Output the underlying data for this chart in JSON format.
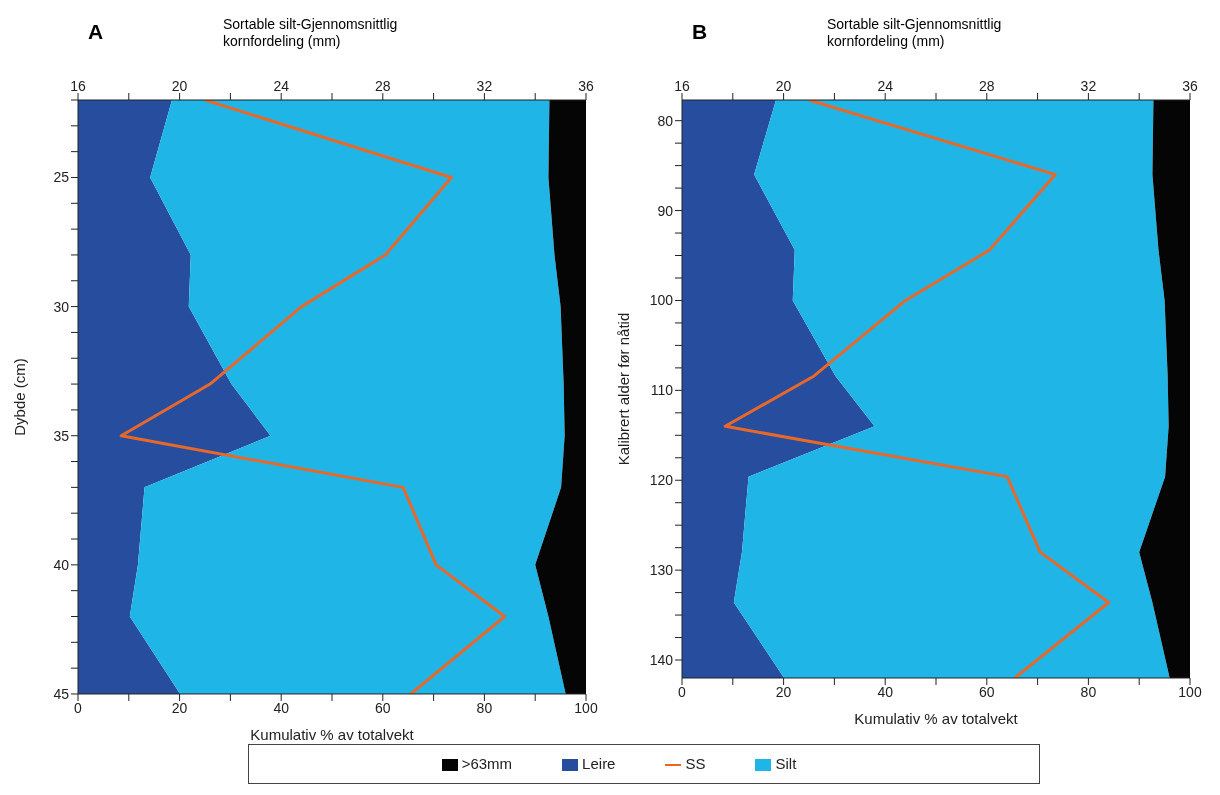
{
  "chart_data": [
    {
      "type": "area",
      "title": "A",
      "stacked": true,
      "orientation": "horizontal",
      "xlabel": "Kumulativ % av totalvekt",
      "x2label": "Sortable silt-Gjennomsnittlig kornfordeling (mm)",
      "ylabel": "Dybde (cm)",
      "legend": "bottom",
      "x": [
        22,
        25,
        28,
        30,
        33,
        35,
        37,
        40,
        42,
        45
      ],
      "series": [
        {
          "name": "Leire",
          "color": "#264d9e",
          "values": [
            18.5,
            14.2,
            22.2,
            21.8,
            30.2,
            37.9,
            13.1,
            11.8,
            10.2,
            20.1
          ]
        },
        {
          "name": "Silt",
          "color": "#1fb5e6",
          "values": [
            74.3,
            78.4,
            71.6,
            73.2,
            65.4,
            57.9,
            82.0,
            78.2,
            82.4,
            75.9
          ]
        },
        {
          "name": ">63mm",
          "color": "#050505",
          "values": [
            7.2,
            7.4,
            6.2,
            5.0,
            4.4,
            4.2,
            4.9,
            10.0,
            7.4,
            4.0
          ]
        },
        {
          "name": "SS",
          "type": "line",
          "axis": "x2",
          "color": "#e8682a",
          "values": [
            21.0,
            30.7,
            28.1,
            24.8,
            21.2,
            17.7,
            28.8,
            30.1,
            32.8,
            29.1
          ]
        }
      ],
      "xlim": [
        0,
        100
      ],
      "xticks": [
        0,
        {
          "value": 10,
          "label": null
        },
        20,
        {
          "value": 30,
          "label": null
        },
        40,
        {
          "value": 50,
          "label": null
        },
        60,
        {
          "value": 70,
          "label": null
        },
        80,
        {
          "value": 90,
          "label": null
        },
        100
      ],
      "x2lim": [
        16,
        36
      ],
      "x2ticks": [
        16,
        {
          "value": 18,
          "label": null
        },
        20,
        {
          "value": 22,
          "label": null
        },
        24,
        {
          "value": 26,
          "label": null
        },
        28,
        {
          "value": 30,
          "label": null
        },
        32,
        {
          "value": 34,
          "label": null
        },
        36
      ],
      "ylim": [
        45,
        22
      ],
      "yticks": [
        {
          "value": 22,
          "label": null
        },
        {
          "value": 23,
          "label": null
        },
        {
          "value": 24,
          "label": null
        },
        25,
        {
          "value": 26,
          "label": null
        },
        {
          "value": 27,
          "label": null
        },
        {
          "value": 28,
          "label": null
        },
        {
          "value": 29,
          "label": null
        },
        30,
        {
          "value": 31,
          "label": null
        },
        {
          "value": 32,
          "label": null
        },
        {
          "value": 33,
          "label": null
        },
        {
          "value": 34,
          "label": null
        },
        35,
        {
          "value": 36,
          "label": null
        },
        {
          "value": 37,
          "label": null
        },
        {
          "value": 38,
          "label": null
        },
        {
          "value": 39,
          "label": null
        },
        40,
        {
          "value": 41,
          "label": null
        },
        {
          "value": 42,
          "label": null
        },
        {
          "value": 43,
          "label": null
        },
        {
          "value": 44,
          "label": null
        },
        45
      ]
    },
    {
      "type": "area",
      "title": "B",
      "stacked": true,
      "orientation": "horizontal",
      "xlabel": "Kumulativ % av totalvekt",
      "x2label": "Sortable silt-Gjennomsnittlig kornfordeling (mm)",
      "ylabel": "Kalibrert alder før nåtid",
      "x": [
        77.7,
        86,
        94.4,
        100,
        108.4,
        114,
        119.6,
        128,
        133.6,
        142
      ],
      "series": [
        {
          "color": "#264d9e",
          "values": [
            18.5,
            14.2,
            22.2,
            21.8,
            30.2,
            37.9,
            13.1,
            11.8,
            10.2,
            20.1
          ]
        },
        {
          "color": "#1fb5e6",
          "values": [
            74.3,
            78.4,
            71.6,
            73.2,
            65.4,
            57.9,
            82.0,
            78.2,
            82.4,
            75.9
          ]
        },
        {
          "color": "#050505",
          "values": [
            7.2,
            7.4,
            6.2,
            5.0,
            4.4,
            4.2,
            4.9,
            10.0,
            7.4,
            4.0
          ]
        },
        {
          "type": "line",
          "axis": "x2",
          "color": "#e8682a",
          "values": [
            21.0,
            30.7,
            28.1,
            24.8,
            21.2,
            17.7,
            28.8,
            30.1,
            32.8,
            29.1
          ]
        }
      ],
      "xlim": [
        0,
        100
      ],
      "xticks": [
        0,
        {
          "value": 10,
          "label": null
        },
        20,
        {
          "value": 30,
          "label": null
        },
        40,
        {
          "value": 50,
          "label": null
        },
        60,
        {
          "value": 70,
          "label": null
        },
        80,
        {
          "value": 90,
          "label": null
        },
        100
      ],
      "x2lim": [
        16,
        36
      ],
      "x2ticks": [
        16,
        {
          "value": 18,
          "label": null
        },
        20,
        {
          "value": 22,
          "label": null
        },
        24,
        {
          "value": 26,
          "label": null
        },
        28,
        {
          "value": 30,
          "label": null
        },
        32,
        {
          "value": 34,
          "label": null
        },
        36
      ],
      "ylim": [
        142,
        77.7
      ],
      "yticks": [
        80,
        {
          "value": 82.5,
          "label": null
        },
        {
          "value": 85,
          "label": null
        },
        {
          "value": 87.5,
          "label": null
        },
        90,
        {
          "value": 92.5,
          "label": null
        },
        {
          "value": 95,
          "label": null
        },
        {
          "value": 97.5,
          "label": null
        },
        100,
        {
          "value": 102.5,
          "label": null
        },
        {
          "value": 105,
          "label": null
        },
        {
          "value": 107.5,
          "label": null
        },
        110,
        {
          "value": 112.5,
          "label": null
        },
        {
          "value": 115,
          "label": null
        },
        {
          "value": 117.5,
          "label": null
        },
        120,
        {
          "value": 122.5,
          "label": null
        },
        {
          "value": 125,
          "label": null
        },
        {
          "value": 127.5,
          "label": null
        },
        130,
        {
          "value": 132.5,
          "label": null
        },
        {
          "value": 135,
          "label": null
        },
        {
          "value": 137.5,
          "label": null
        },
        140
      ]
    }
  ]
}
